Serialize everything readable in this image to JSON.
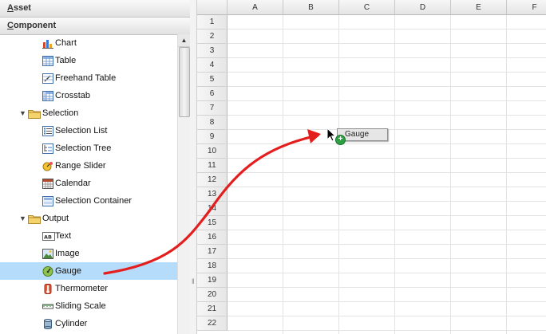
{
  "panel": {
    "asset_label_first": "A",
    "asset_label_rest": "sset",
    "component_label_first": "C",
    "component_label_rest": "omponent"
  },
  "tree": [
    {
      "label": "Chart",
      "icon": "chart-icon",
      "kind": "item"
    },
    {
      "label": "Table",
      "icon": "table-icon",
      "kind": "item"
    },
    {
      "label": "Freehand Table",
      "icon": "freehand-table-icon",
      "kind": "item"
    },
    {
      "label": "Crosstab",
      "icon": "crosstab-icon",
      "kind": "item"
    },
    {
      "label": "Selection",
      "icon": "folder-icon",
      "kind": "folder"
    },
    {
      "label": "Selection List",
      "icon": "selection-list-icon",
      "kind": "item"
    },
    {
      "label": "Selection Tree",
      "icon": "selection-tree-icon",
      "kind": "item"
    },
    {
      "label": "Range Slider",
      "icon": "range-slider-icon",
      "kind": "item"
    },
    {
      "label": "Calendar",
      "icon": "calendar-icon",
      "kind": "item"
    },
    {
      "label": "Selection Container",
      "icon": "selection-container-icon",
      "kind": "item"
    },
    {
      "label": "Output",
      "icon": "folder-icon",
      "kind": "folder"
    },
    {
      "label": "Text",
      "icon": "text-icon",
      "kind": "item"
    },
    {
      "label": "Image",
      "icon": "image-icon",
      "kind": "item"
    },
    {
      "label": "Gauge",
      "icon": "gauge-icon",
      "kind": "item",
      "selected": true
    },
    {
      "label": "Thermometer",
      "icon": "thermometer-icon",
      "kind": "item"
    },
    {
      "label": "Sliding Scale",
      "icon": "sliding-scale-icon",
      "kind": "item"
    },
    {
      "label": "Cylinder",
      "icon": "cylinder-icon",
      "kind": "item"
    }
  ],
  "grid": {
    "columns": [
      "A",
      "B",
      "C",
      "D",
      "E",
      "F"
    ],
    "rows": [
      "1",
      "2",
      "3",
      "4",
      "5",
      "6",
      "7",
      "8",
      "9",
      "10",
      "11",
      "12",
      "13",
      "14",
      "15",
      "16",
      "17",
      "18",
      "19",
      "20",
      "21",
      "22"
    ]
  },
  "drag": {
    "label": "Gauge",
    "plus_glyph": "+"
  },
  "colors": {
    "selection": "#b5dcfb",
    "arrow": "#e41e1e",
    "folder": "#f0c24a"
  }
}
